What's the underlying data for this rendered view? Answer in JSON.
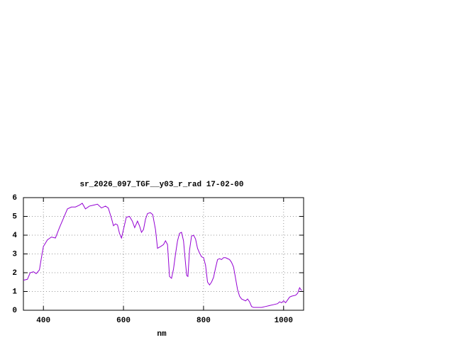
{
  "chart_data": {
    "type": "line",
    "title": "sr_2026_097_TGF__y03_r_rad 17-02-00",
    "x_label": "nm",
    "color": "#9400d3",
    "grid": true,
    "xlim": [
      350,
      1050
    ],
    "xticks": [
      400,
      600,
      800,
      1000
    ],
    "ylim": [
      0,
      6
    ],
    "yticks": [
      0,
      1,
      2,
      3,
      4,
      5,
      6
    ],
    "x": [
      350,
      360,
      367,
      375,
      382,
      390,
      395,
      400,
      410,
      420,
      430,
      440,
      450,
      460,
      470,
      480,
      490,
      497,
      505,
      515,
      525,
      535,
      545,
      555,
      562,
      570,
      575,
      580,
      585,
      590,
      595,
      600,
      607,
      615,
      622,
      628,
      635,
      640,
      645,
      650,
      655,
      660,
      667,
      673,
      680,
      685,
      693,
      700,
      705,
      710,
      715,
      720,
      725,
      730,
      735,
      740,
      745,
      750,
      755,
      758,
      761,
      765,
      770,
      775,
      780,
      785,
      790,
      795,
      800,
      805,
      810,
      815,
      820,
      825,
      830,
      835,
      840,
      845,
      850,
      855,
      860,
      865,
      870,
      875,
      880,
      885,
      890,
      895,
      900,
      905,
      910,
      915,
      920,
      925,
      935,
      945,
      955,
      965,
      975,
      985,
      990,
      995,
      1000,
      1005,
      1010,
      1015,
      1020,
      1030,
      1035,
      1040,
      1045
    ],
    "values": [
      1.6,
      1.65,
      2.0,
      2.05,
      1.95,
      2.15,
      2.8,
      3.4,
      3.75,
      3.9,
      3.85,
      4.4,
      4.9,
      5.4,
      5.5,
      5.5,
      5.6,
      5.7,
      5.4,
      5.55,
      5.6,
      5.65,
      5.45,
      5.55,
      5.45,
      4.9,
      4.5,
      4.6,
      4.55,
      4.1,
      3.85,
      4.3,
      4.95,
      5.0,
      4.75,
      4.4,
      4.75,
      4.5,
      4.15,
      4.3,
      4.85,
      5.15,
      5.2,
      5.1,
      4.3,
      3.3,
      3.4,
      3.5,
      3.7,
      3.5,
      1.8,
      1.7,
      2.2,
      3.0,
      3.7,
      4.1,
      4.15,
      3.7,
      2.5,
      1.85,
      1.8,
      3.2,
      3.95,
      4.0,
      3.8,
      3.3,
      3.05,
      2.85,
      2.8,
      2.4,
      1.5,
      1.35,
      1.5,
      1.75,
      2.25,
      2.7,
      2.75,
      2.7,
      2.8,
      2.8,
      2.75,
      2.7,
      2.55,
      2.3,
      1.7,
      1.1,
      0.75,
      0.6,
      0.55,
      0.5,
      0.6,
      0.45,
      0.2,
      0.15,
      0.15,
      0.15,
      0.2,
      0.25,
      0.3,
      0.35,
      0.45,
      0.4,
      0.5,
      0.4,
      0.55,
      0.7,
      0.75,
      0.8,
      0.9,
      1.2,
      1.05
    ]
  }
}
